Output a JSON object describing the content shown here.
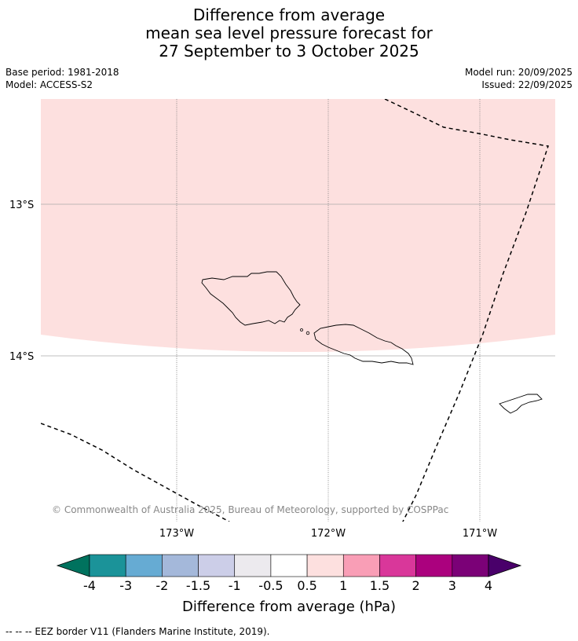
{
  "title": {
    "line1": "Difference from average",
    "line2": "mean sea level pressure forecast for",
    "line3": "27 September to 3 October 2025"
  },
  "meta": {
    "base_period": "Base period: 1981-2018",
    "model": "Model: ACCESS-S2",
    "model_run": "Model run: 20/09/2025",
    "issued": "Issued: 22/09/2025"
  },
  "map": {
    "lon_labels": [
      "173°W",
      "172°W",
      "171°W"
    ],
    "lat_labels": [
      "13°S",
      "14°S"
    ],
    "copyright": "© Commonwealth of Australia 2025, Bureau of Meteorology, supported by COSPPac",
    "anomaly_fill_color": "#fde0df",
    "anomaly_category": "0.5 to 1"
  },
  "colorbar": {
    "tick_labels": [
      "-4",
      "-3",
      "-2",
      "-1.5",
      "-1",
      "-0.5",
      "0.5",
      "1",
      "1.5",
      "2",
      "3",
      "4"
    ],
    "colors": [
      "#00725e",
      "#1b9399",
      "#66abd3",
      "#a4b8da",
      "#cccee8",
      "#eceaee",
      "#ffffff",
      "#fde0df",
      "#f99eb6",
      "#d9379a",
      "#ab017e",
      "#7b0177",
      "#49006a"
    ],
    "label": "Difference from average (hPa)"
  },
  "footnote": "--  --  -- EEZ border V11 (Flanders Marine Institute, 2019)."
}
